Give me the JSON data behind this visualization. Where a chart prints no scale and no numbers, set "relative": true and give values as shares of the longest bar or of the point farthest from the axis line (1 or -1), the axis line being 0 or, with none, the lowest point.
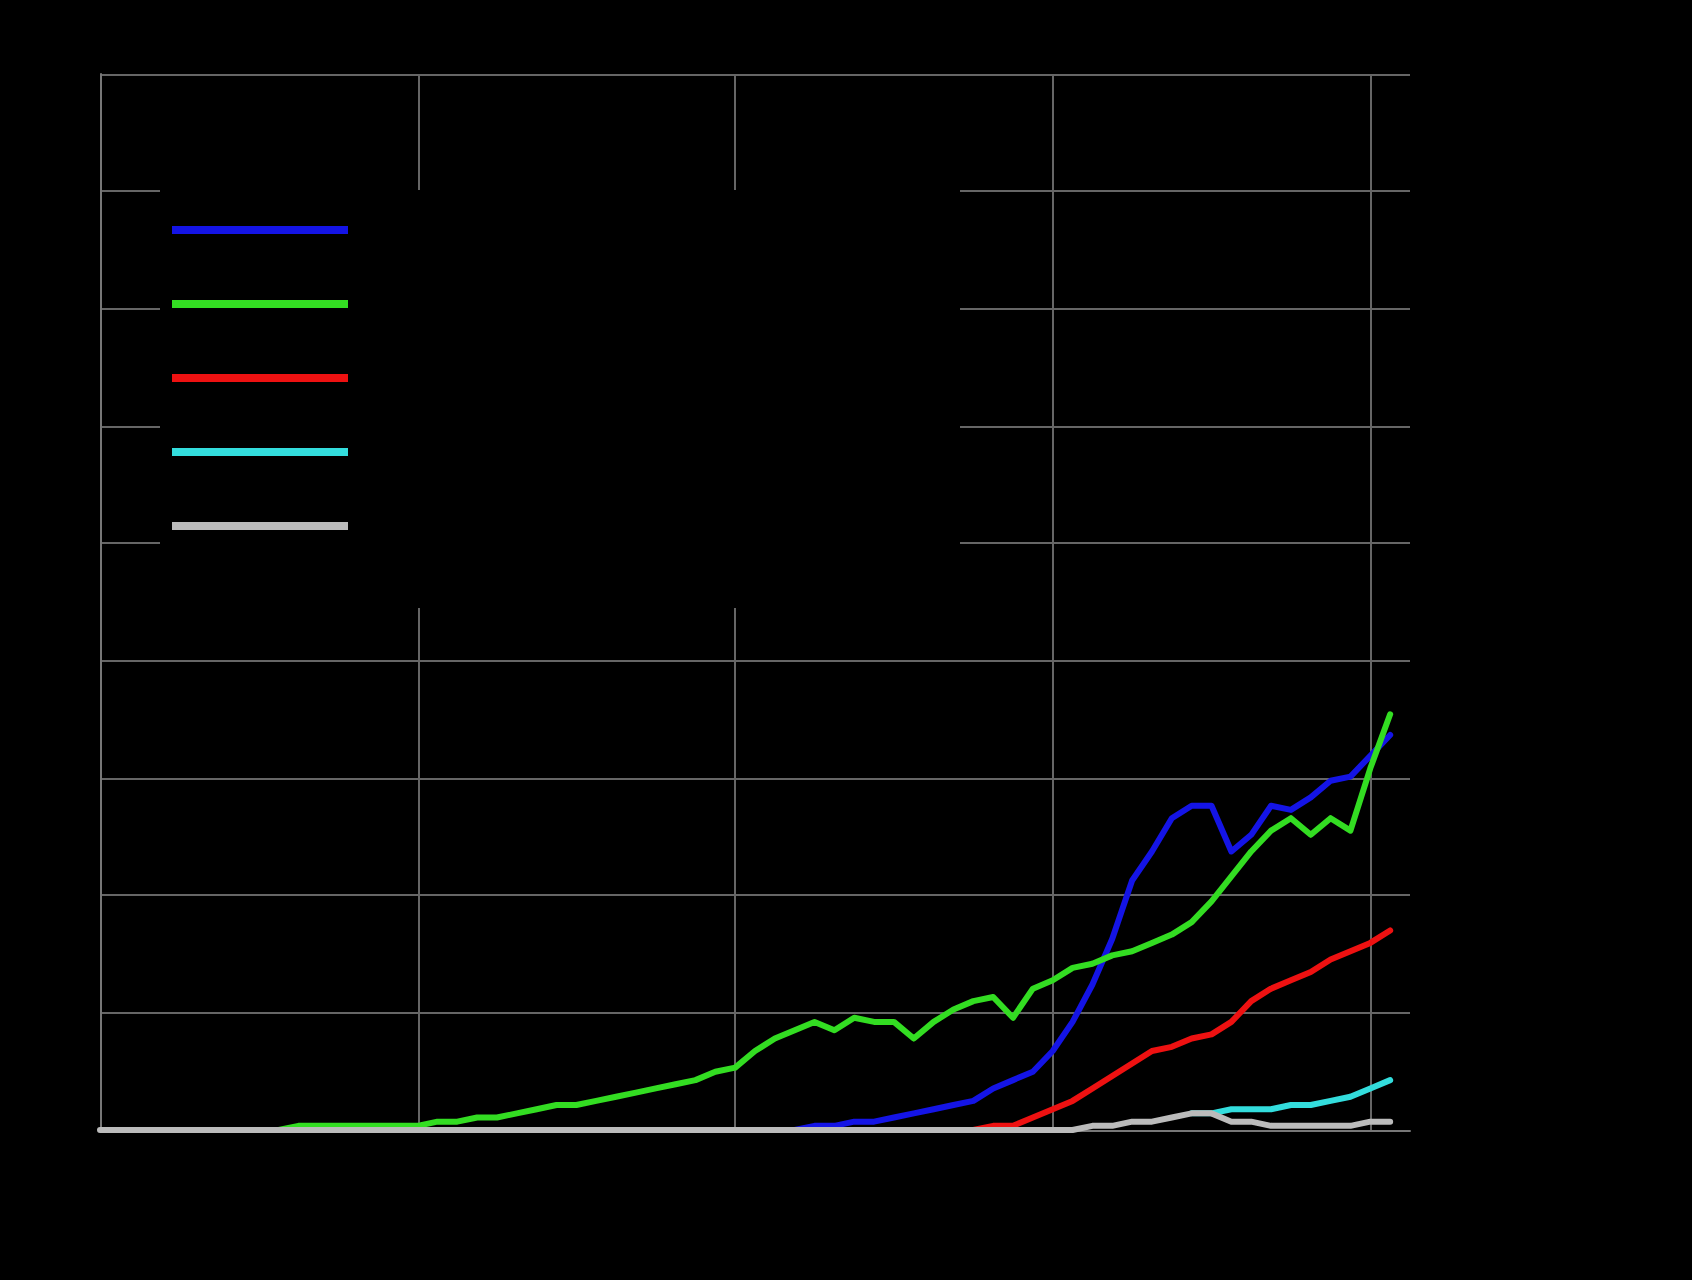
{
  "chart_data": {
    "type": "line",
    "relative": true,
    "grid": true,
    "categories": [
      null,
      null,
      null,
      null,
      null,
      null,
      null,
      null,
      null,
      null,
      null,
      null,
      null,
      null,
      null,
      null,
      null,
      null,
      null,
      null,
      null,
      null,
      null,
      null,
      null,
      null,
      null,
      null,
      null,
      null,
      null,
      null,
      null,
      null,
      null,
      null,
      null,
      null,
      null,
      null,
      null,
      null,
      null,
      null,
      null,
      null,
      null,
      null,
      null,
      null,
      null,
      null,
      null,
      null,
      null,
      null,
      null,
      null,
      null,
      null,
      null,
      null,
      null,
      null,
      null,
      null,
      null
    ],
    "series": [
      {
        "color": "#1414e6",
        "values": [
          null,
          null,
          null,
          null,
          null,
          null,
          null,
          null,
          null,
          null,
          null,
          null,
          null,
          null,
          null,
          null,
          null,
          null,
          null,
          null,
          null,
          null,
          null,
          null,
          null,
          null,
          null,
          null,
          null,
          null,
          null,
          null,
          null,
          null,
          null,
          0,
          0.01,
          0.01,
          0.02,
          0.02,
          0.03,
          0.04,
          0.05,
          0.06,
          0.07,
          0.1,
          0.12,
          0.14,
          0.19,
          0.26,
          0.35,
          0.46,
          0.6,
          0.67,
          0.75,
          0.78,
          0.78,
          0.67,
          0.71,
          0.78,
          0.77,
          0.8,
          0.84,
          0.85,
          0.9,
          0.95,
          null
        ]
      },
      {
        "color": "#33dd22",
        "values": [
          null,
          null,
          null,
          null,
          null,
          null,
          null,
          null,
          null,
          0,
          0.01,
          0.01,
          0.01,
          0.01,
          0.01,
          0.01,
          0.01,
          0.02,
          0.02,
          0.03,
          0.03,
          0.04,
          0.05,
          0.06,
          0.06,
          0.07,
          0.08,
          0.09,
          0.1,
          0.11,
          0.12,
          0.14,
          0.15,
          0.19,
          0.22,
          0.24,
          0.26,
          0.24,
          0.27,
          0.26,
          0.26,
          0.22,
          0.26,
          0.29,
          0.31,
          0.32,
          0.27,
          0.34,
          0.36,
          0.39,
          0.4,
          0.42,
          0.43,
          0.45,
          0.47,
          0.5,
          0.55,
          0.61,
          0.67,
          0.72,
          0.75,
          0.71,
          0.75,
          0.72,
          0.87,
          1,
          null
        ]
      },
      {
        "color": "#ee1111",
        "values": [
          null,
          null,
          null,
          null,
          null,
          null,
          null,
          null,
          null,
          null,
          null,
          null,
          null,
          null,
          null,
          null,
          null,
          null,
          null,
          null,
          null,
          null,
          null,
          null,
          null,
          null,
          null,
          null,
          null,
          null,
          null,
          null,
          null,
          null,
          null,
          null,
          null,
          null,
          null,
          null,
          null,
          null,
          null,
          null,
          0,
          0.01,
          0.01,
          0.03,
          0.05,
          0.07,
          0.1,
          0.13,
          0.16,
          0.19,
          0.2,
          0.22,
          0.23,
          0.26,
          0.31,
          0.34,
          0.36,
          0.38,
          0.41,
          0.43,
          0.45,
          0.48,
          null
        ]
      },
      {
        "color": "#33dddd",
        "values": [
          null,
          null,
          null,
          null,
          null,
          null,
          null,
          null,
          null,
          null,
          null,
          null,
          null,
          null,
          null,
          null,
          null,
          null,
          null,
          null,
          null,
          null,
          null,
          null,
          null,
          null,
          null,
          null,
          null,
          null,
          null,
          null,
          null,
          null,
          null,
          null,
          null,
          null,
          null,
          null,
          null,
          null,
          null,
          null,
          null,
          null,
          null,
          null,
          null,
          null,
          null,
          null,
          null,
          null,
          null,
          0.04,
          0.04,
          0.05,
          0.05,
          0.05,
          0.06,
          0.06,
          0.07,
          0.08,
          0.1,
          0.12,
          null
        ]
      },
      {
        "color": "#bbbbbb",
        "values": [
          0,
          0,
          0,
          0,
          0,
          0,
          0,
          0,
          0,
          0,
          0,
          0,
          0,
          0,
          0,
          0,
          0,
          0,
          0,
          0,
          0,
          0,
          0,
          0,
          0,
          0,
          0,
          0,
          0,
          0,
          0,
          0,
          0,
          0,
          0,
          0,
          0,
          0,
          0,
          0,
          0,
          0,
          0,
          0,
          0,
          0,
          0,
          0,
          0,
          0,
          0.01,
          0.01,
          0.02,
          0.02,
          0.03,
          0.04,
          0.04,
          0.02,
          0.02,
          0.01,
          0.01,
          0.01,
          0.01,
          0.01,
          0.02,
          0.02,
          null
        ]
      }
    ]
  }
}
